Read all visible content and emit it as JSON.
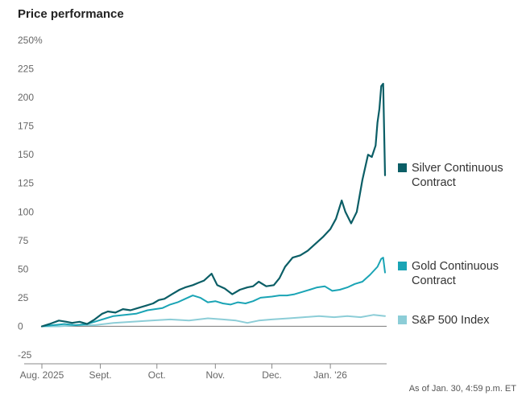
{
  "title": "Price performance",
  "note": "As of Jan. 30, 4:59 p.m. ET",
  "colors": {
    "silver": "#0b5e66",
    "gold": "#1aa4b5",
    "sp500": "#8ccdd7",
    "axis": "#888888",
    "grid": "#e6e6e6"
  },
  "chart_data": {
    "type": "line",
    "title": "Price performance",
    "ylim": [
      -25,
      250
    ],
    "yticks": [
      250,
      225,
      200,
      175,
      150,
      125,
      100,
      75,
      50,
      25,
      0,
      -25
    ],
    "ytick_labels": [
      "250%",
      "225",
      "200",
      "175",
      "150",
      "125",
      "100",
      "75",
      "50",
      "25",
      "0",
      "-25"
    ],
    "xticks": [
      {
        "label": "Aug. 2025",
        "date": "2025-08-01"
      },
      {
        "label": "Sept.",
        "date": "2025-09-01"
      },
      {
        "label": "Oct.",
        "date": "2025-10-01"
      },
      {
        "label": "Nov.",
        "date": "2025-11-01"
      },
      {
        "label": "Dec.",
        "date": "2025-12-01"
      },
      {
        "label": "Jan. '26",
        "date": "2026-01-01"
      }
    ],
    "grid": false,
    "legend_position": "right",
    "series": [
      {
        "name": "Silver Continuous Contract",
        "color": "#0b5e66",
        "points": [
          [
            "2025-08-01",
            0
          ],
          [
            "2025-08-05",
            2
          ],
          [
            "2025-08-10",
            5
          ],
          [
            "2025-08-14",
            4
          ],
          [
            "2025-08-17",
            3
          ],
          [
            "2025-08-21",
            4
          ],
          [
            "2025-08-25",
            2
          ],
          [
            "2025-08-29",
            6
          ],
          [
            "2025-09-02",
            11
          ],
          [
            "2025-09-05",
            13
          ],
          [
            "2025-09-09",
            12
          ],
          [
            "2025-09-13",
            15
          ],
          [
            "2025-09-17",
            14
          ],
          [
            "2025-09-21",
            16
          ],
          [
            "2025-09-25",
            18
          ],
          [
            "2025-09-29",
            20
          ],
          [
            "2025-10-02",
            23
          ],
          [
            "2025-10-05",
            24
          ],
          [
            "2025-10-09",
            28
          ],
          [
            "2025-10-13",
            32
          ],
          [
            "2025-10-16",
            34
          ],
          [
            "2025-10-20",
            36
          ],
          [
            "2025-10-23",
            38
          ],
          [
            "2025-10-26",
            40
          ],
          [
            "2025-10-30",
            46
          ],
          [
            "2025-11-02",
            36
          ],
          [
            "2025-11-06",
            33
          ],
          [
            "2025-11-10",
            28
          ],
          [
            "2025-11-14",
            32
          ],
          [
            "2025-11-18",
            34
          ],
          [
            "2025-11-21",
            35
          ],
          [
            "2025-11-24",
            39
          ],
          [
            "2025-11-28",
            35
          ],
          [
            "2025-12-02",
            36
          ],
          [
            "2025-12-05",
            42
          ],
          [
            "2025-12-08",
            52
          ],
          [
            "2025-12-12",
            60
          ],
          [
            "2025-12-16",
            62
          ],
          [
            "2025-12-20",
            66
          ],
          [
            "2025-12-24",
            72
          ],
          [
            "2025-12-28",
            78
          ],
          [
            "2026-01-01",
            85
          ],
          [
            "2026-01-04",
            94
          ],
          [
            "2026-01-07",
            110
          ],
          [
            "2026-01-09",
            100
          ],
          [
            "2026-01-12",
            90
          ],
          [
            "2026-01-15",
            100
          ],
          [
            "2026-01-18",
            128
          ],
          [
            "2026-01-21",
            150
          ],
          [
            "2026-01-23",
            148
          ],
          [
            "2026-01-25",
            158
          ],
          [
            "2026-01-26",
            178
          ],
          [
            "2026-01-27",
            190
          ],
          [
            "2026-01-28",
            210
          ],
          [
            "2026-01-29",
            212
          ],
          [
            "2026-01-30",
            132
          ]
        ]
      },
      {
        "name": "Gold Continuous Contract",
        "color": "#1aa4b5",
        "points": [
          [
            "2025-08-01",
            0
          ],
          [
            "2025-08-07",
            1
          ],
          [
            "2025-08-13",
            2
          ],
          [
            "2025-08-19",
            1
          ],
          [
            "2025-08-25",
            2
          ],
          [
            "2025-08-29",
            4
          ],
          [
            "2025-09-04",
            7
          ],
          [
            "2025-09-08",
            9
          ],
          [
            "2025-09-14",
            10
          ],
          [
            "2025-09-20",
            11
          ],
          [
            "2025-09-26",
            14
          ],
          [
            "2025-09-30",
            15
          ],
          [
            "2025-10-04",
            16
          ],
          [
            "2025-10-08",
            19
          ],
          [
            "2025-10-12",
            21
          ],
          [
            "2025-10-16",
            24
          ],
          [
            "2025-10-20",
            27
          ],
          [
            "2025-10-24",
            25
          ],
          [
            "2025-10-28",
            21
          ],
          [
            "2025-11-01",
            22
          ],
          [
            "2025-11-05",
            20
          ],
          [
            "2025-11-09",
            19
          ],
          [
            "2025-11-13",
            21
          ],
          [
            "2025-11-17",
            20
          ],
          [
            "2025-11-21",
            22
          ],
          [
            "2025-11-25",
            25
          ],
          [
            "2025-12-01",
            26
          ],
          [
            "2025-12-05",
            27
          ],
          [
            "2025-12-09",
            27
          ],
          [
            "2025-12-13",
            28
          ],
          [
            "2025-12-17",
            30
          ],
          [
            "2025-12-21",
            32
          ],
          [
            "2025-12-25",
            34
          ],
          [
            "2025-12-29",
            35
          ],
          [
            "2026-01-02",
            31
          ],
          [
            "2026-01-06",
            32
          ],
          [
            "2026-01-10",
            34
          ],
          [
            "2026-01-14",
            37
          ],
          [
            "2026-01-18",
            39
          ],
          [
            "2026-01-22",
            45
          ],
          [
            "2026-01-26",
            52
          ],
          [
            "2026-01-28",
            59
          ],
          [
            "2026-01-29",
            60
          ],
          [
            "2026-01-30",
            47
          ]
        ]
      },
      {
        "name": "S&P 500 Index",
        "color": "#8ccdd7",
        "points": [
          [
            "2025-08-01",
            0
          ],
          [
            "2025-08-10",
            0
          ],
          [
            "2025-08-20",
            1
          ],
          [
            "2025-08-29",
            1
          ],
          [
            "2025-09-08",
            3
          ],
          [
            "2025-09-18",
            4
          ],
          [
            "2025-09-28",
            5
          ],
          [
            "2025-10-08",
            6
          ],
          [
            "2025-10-18",
            5
          ],
          [
            "2025-10-28",
            7
          ],
          [
            "2025-11-05",
            6
          ],
          [
            "2025-11-12",
            5
          ],
          [
            "2025-11-18",
            3
          ],
          [
            "2025-11-24",
            5
          ],
          [
            "2025-12-01",
            6
          ],
          [
            "2025-12-10",
            7
          ],
          [
            "2025-12-18",
            8
          ],
          [
            "2025-12-26",
            9
          ],
          [
            "2026-01-03",
            8
          ],
          [
            "2026-01-10",
            9
          ],
          [
            "2026-01-17",
            8
          ],
          [
            "2026-01-24",
            10
          ],
          [
            "2026-01-30",
            9
          ]
        ]
      }
    ]
  }
}
